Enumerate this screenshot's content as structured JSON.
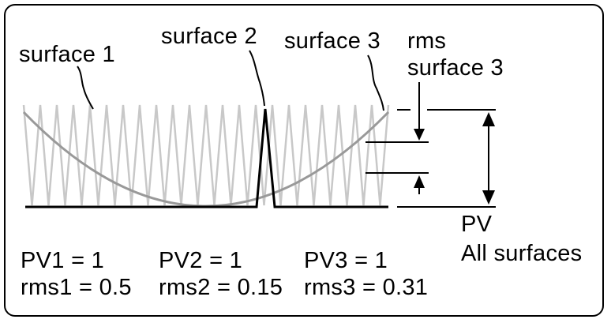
{
  "labels": {
    "surface1": "surface 1",
    "surface2": "surface 2",
    "surface3": "surface 3",
    "rms_line1": "rms",
    "rms_line2": "surface 3",
    "pv_line1": "PV",
    "pv_line2": "All surfaces"
  },
  "stats": {
    "pv1": "PV1 = 1",
    "rms1": "rms1 = 0.5",
    "pv2": "PV2 = 1",
    "rms2": "rms2 = 0.15",
    "pv3": "PV3 = 1",
    "rms3": "rms3 = 0.31"
  },
  "colors": {
    "surface1": "#c8c8c8",
    "surface2": "#000000",
    "surface3": "#999999",
    "border": "#000000"
  }
}
